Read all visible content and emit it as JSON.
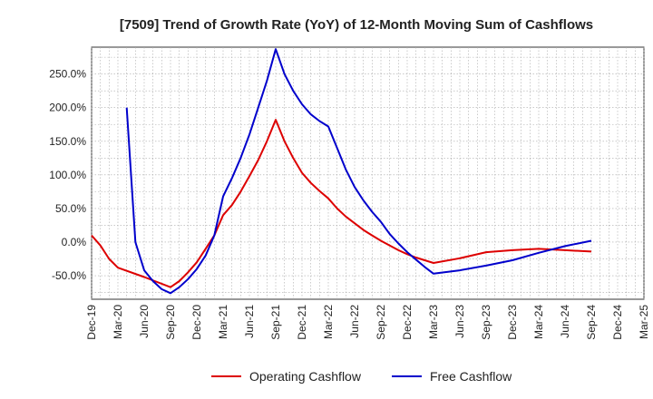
{
  "chart_data": {
    "type": "line",
    "title": "[7509]  Trend of Growth Rate (YoY) of 12-Month Moving Sum of Cashflows",
    "xlabel": "",
    "ylabel": "",
    "x_ticks": [
      "Dec-19",
      "Mar-20",
      "Jun-20",
      "Sep-20",
      "Dec-20",
      "Mar-21",
      "Jun-21",
      "Sep-21",
      "Dec-21",
      "Mar-22",
      "Jun-22",
      "Sep-22",
      "Dec-22",
      "Mar-23",
      "Jun-23",
      "Sep-23",
      "Dec-23",
      "Mar-24",
      "Jun-24",
      "Sep-24",
      "Dec-24",
      "Mar-25"
    ],
    "y_ticks": [
      "-50.0%",
      "0.0%",
      "50.0%",
      "100.0%",
      "150.0%",
      "200.0%",
      "250.0%"
    ],
    "ylim": [
      -85,
      290
    ],
    "grid": true,
    "legend_position": "bottom",
    "series": [
      {
        "name": "Operating Cashflow",
        "color": "#dd0000",
        "points": [
          [
            "Dec-19",
            10
          ],
          [
            "Jan-20",
            -5
          ],
          [
            "Feb-20",
            -25
          ],
          [
            "Mar-20",
            -38
          ],
          [
            "Jun-20",
            -52
          ],
          [
            "Sep-20",
            -67
          ],
          [
            "Oct-20",
            -58
          ],
          [
            "Nov-20",
            -45
          ],
          [
            "Dec-20",
            -30
          ],
          [
            "Jan-21",
            -10
          ],
          [
            "Feb-21",
            10
          ],
          [
            "Mar-21",
            40
          ],
          [
            "Apr-21",
            55
          ],
          [
            "May-21",
            75
          ],
          [
            "Jun-21",
            98
          ],
          [
            "Jul-21",
            122
          ],
          [
            "Aug-21",
            150
          ],
          [
            "Sep-21",
            182
          ],
          [
            "Oct-21",
            150
          ],
          [
            "Nov-21",
            125
          ],
          [
            "Dec-21",
            103
          ],
          [
            "Jan-22",
            88
          ],
          [
            "Feb-22",
            76
          ],
          [
            "Mar-22",
            65
          ],
          [
            "Apr-22",
            50
          ],
          [
            "May-22",
            38
          ],
          [
            "Jun-22",
            28
          ],
          [
            "Jul-22",
            18
          ],
          [
            "Aug-22",
            10
          ],
          [
            "Sep-22",
            2
          ],
          [
            "Oct-22",
            -5
          ],
          [
            "Nov-22",
            -12
          ],
          [
            "Dec-22",
            -18
          ],
          [
            "Jan-23",
            -23
          ],
          [
            "Feb-23",
            -27
          ],
          [
            "Mar-23",
            -31
          ],
          [
            "Jun-23",
            -24
          ],
          [
            "Sep-23",
            -15
          ],
          [
            "Dec-23",
            -12
          ],
          [
            "Mar-24",
            -10
          ],
          [
            "Jun-24",
            -12
          ],
          [
            "Sep-24",
            -14
          ]
        ]
      },
      {
        "name": "Free Cashflow",
        "color": "#0000cc",
        "points": [
          [
            "Apr-20",
            200
          ],
          [
            "May-20",
            0
          ],
          [
            "Jun-20",
            -42
          ],
          [
            "Jul-20",
            -58
          ],
          [
            "Aug-20",
            -70
          ],
          [
            "Sep-20",
            -76
          ],
          [
            "Oct-20",
            -67
          ],
          [
            "Nov-20",
            -55
          ],
          [
            "Dec-20",
            -40
          ],
          [
            "Jan-21",
            -20
          ],
          [
            "Feb-21",
            10
          ],
          [
            "Mar-21",
            68
          ],
          [
            "Apr-21",
            95
          ],
          [
            "May-21",
            125
          ],
          [
            "Jun-21",
            160
          ],
          [
            "Jul-21",
            200
          ],
          [
            "Aug-21",
            240
          ],
          [
            "Sep-21",
            287
          ],
          [
            "Oct-21",
            250
          ],
          [
            "Nov-21",
            225
          ],
          [
            "Dec-21",
            205
          ],
          [
            "Jan-22",
            190
          ],
          [
            "Feb-22",
            180
          ],
          [
            "Mar-22",
            172
          ],
          [
            "Apr-22",
            140
          ],
          [
            "May-22",
            108
          ],
          [
            "Jun-22",
            82
          ],
          [
            "Jul-22",
            62
          ],
          [
            "Aug-22",
            45
          ],
          [
            "Sep-22",
            30
          ],
          [
            "Oct-22",
            12
          ],
          [
            "Nov-22",
            -2
          ],
          [
            "Dec-22",
            -15
          ],
          [
            "Jan-23",
            -26
          ],
          [
            "Feb-23",
            -37
          ],
          [
            "Mar-23",
            -47
          ],
          [
            "Jun-23",
            -42
          ],
          [
            "Sep-23",
            -35
          ],
          [
            "Dec-23",
            -27
          ],
          [
            "Mar-24",
            -16
          ],
          [
            "Jun-24",
            -6
          ],
          [
            "Sep-24",
            2
          ]
        ]
      }
    ]
  }
}
